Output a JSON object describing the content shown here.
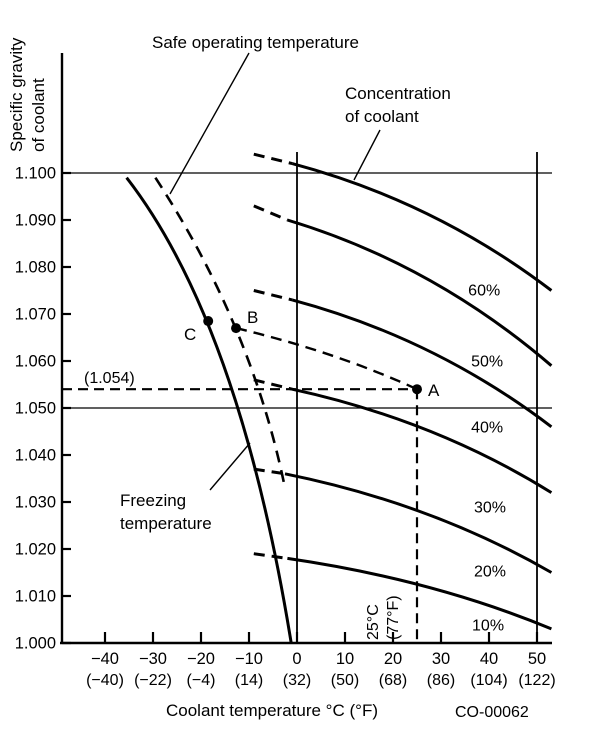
{
  "figure_code": "CO-00062",
  "labels": {
    "safe": "Safe operating temperature",
    "conc_line1": "Concentration",
    "conc_line2": "of coolant",
    "freeze_line1": "Freezing",
    "freeze_line2": "temperature",
    "ylabel_line1": "Specific gravity",
    "ylabel_line2": "of coolant",
    "xlabel": "Coolant temperature °C (°F)",
    "sg_callout": "(1.054)",
    "temp_callout_line1": "25°C",
    "temp_callout_line2": "(77°F)",
    "pointA": "A",
    "pointB": "B",
    "pointC": "C",
    "code": "CO-00062"
  },
  "chart_data": {
    "type": "line",
    "title": "",
    "xlabel": "Coolant temperature °C (°F)",
    "ylabel": "Specific gravity of coolant",
    "xlim": [
      -49,
      53
    ],
    "ylim": [
      1.0,
      1.125
    ],
    "grid": "partial",
    "h_gridlines_sg": [
      1.1,
      1.05
    ],
    "v_gridlines_t": [
      0,
      50
    ],
    "x_ticks": [
      {
        "t": -40,
        "c_label": "−40",
        "f_label": "(−40)"
      },
      {
        "t": -30,
        "c_label": "−30",
        "f_label": "(−22)"
      },
      {
        "t": -20,
        "c_label": "−20",
        "f_label": "(−4)"
      },
      {
        "t": -10,
        "c_label": "−10",
        "f_label": "(14)"
      },
      {
        "t": 0,
        "c_label": "0",
        "f_label": "(32)"
      },
      {
        "t": 10,
        "c_label": "10",
        "f_label": "(50)"
      },
      {
        "t": 20,
        "c_label": "20",
        "f_label": "(68)"
      },
      {
        "t": 30,
        "c_label": "30",
        "f_label": "(86)"
      },
      {
        "t": 40,
        "c_label": "40",
        "f_label": "(104)"
      },
      {
        "t": 50,
        "c_label": "50",
        "f_label": "(122)"
      }
    ],
    "y_ticks": [
      {
        "sg": 1.1,
        "label": "1.100"
      },
      {
        "sg": 1.09,
        "label": "1.090"
      },
      {
        "sg": 1.08,
        "label": "1.080"
      },
      {
        "sg": 1.07,
        "label": "1.070"
      },
      {
        "sg": 1.06,
        "label": "1.060"
      },
      {
        "sg": 1.05,
        "label": "1.050"
      },
      {
        "sg": 1.04,
        "label": "1.040"
      },
      {
        "sg": 1.03,
        "label": "1.030"
      },
      {
        "sg": 1.02,
        "label": "1.020"
      },
      {
        "sg": 1.01,
        "label": "1.010"
      },
      {
        "sg": 1.0,
        "label": "1.000"
      }
    ],
    "concentration_curves": [
      {
        "label": "60%",
        "dash_from": [
          -9.0,
          1.104
        ],
        "solid_from": [
          -1.0,
          1.102
        ],
        "end": [
          53,
          1.075
        ],
        "label_at": [
          39.0,
          1.0751
        ]
      },
      {
        "label": "50%",
        "dash_from": [
          -9.0,
          1.093
        ],
        "solid_from": [
          -2.0,
          1.09
        ],
        "end": [
          53,
          1.059
        ],
        "label_at": [
          39.6,
          1.06
        ]
      },
      {
        "label": "40%",
        "dash_from": [
          -9.0,
          1.075
        ],
        "solid_from": [
          -1.0,
          1.073
        ],
        "end": [
          53,
          1.046
        ],
        "label_at": [
          39.6,
          1.046
        ]
      },
      {
        "label": "30%",
        "dash_from": [
          -9.0,
          1.056
        ],
        "solid_from": [
          -1.0,
          1.054
        ],
        "end": [
          53,
          1.032
        ],
        "label_at": [
          40.2,
          1.0289
        ]
      },
      {
        "label": "20%",
        "dash_from": [
          -9.0,
          1.037
        ],
        "solid_from": [
          -2.5,
          1.036
        ],
        "end": [
          53,
          1.015
        ],
        "label_at": [
          40.2,
          1.0153
        ]
      },
      {
        "label": "10%",
        "dash_from": [
          -9.0,
          1.019
        ],
        "solid_from": [
          -2.0,
          1.018
        ],
        "end": [
          53,
          1.003
        ],
        "label_at": [
          39.8,
          1.0038
        ]
      }
    ],
    "freezing_curve": {
      "name": "Freezing temperature",
      "start": [
        -35.5,
        1.099
      ],
      "ctrl": [
        -12.0,
        1.068
      ],
      "end": [
        -1.2,
        1.0
      ]
    },
    "safe_operating_curve": {
      "name": "Safe operating temperature",
      "start": [
        -29.5,
        1.099
      ],
      "ctrl": [
        -9.7,
        1.068
      ],
      "end": [
        -2.7,
        1.034
      ]
    },
    "reading_curve": {
      "name": "B to A reading path",
      "start": [
        -12.7,
        1.067
      ],
      "ctrl": [
        7.9,
        1.062
      ],
      "end": [
        25,
        1.054
      ]
    },
    "points": [
      {
        "name": "A",
        "t": 25,
        "sg": 1.054
      },
      {
        "name": "B",
        "t": -12.7,
        "sg": 1.067
      },
      {
        "name": "C",
        "t": -18.5,
        "sg": 1.0685
      }
    ],
    "guides": {
      "sg_value": 1.054,
      "sg_label": "(1.054)",
      "t_value": 25,
      "t_label": "25°C (77°F)"
    }
  }
}
